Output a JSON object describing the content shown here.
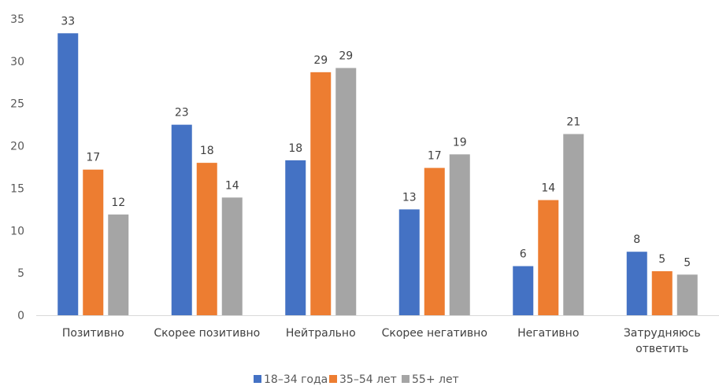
{
  "chart_data": {
    "type": "bar",
    "title": "",
    "xlabel": "",
    "ylabel": "",
    "ylim": [
      0,
      35
    ],
    "yticks": [
      0,
      5,
      10,
      15,
      20,
      25,
      30,
      35
    ],
    "grid": false,
    "legend_position": "bottom",
    "categories": [
      [
        "Позитивно"
      ],
      [
        "Скорее позитивно"
      ],
      [
        "Нейтрально"
      ],
      [
        "Скорее негативно"
      ],
      [
        "Негативно"
      ],
      [
        "Затрудняюсь",
        "ответить"
      ]
    ],
    "series": [
      {
        "name": "18–34 года",
        "color": "#4472C4",
        "values": [
          33.3,
          22.5,
          18.3,
          12.5,
          5.8,
          7.5
        ],
        "labels": [
          "33",
          "23",
          "18",
          "13",
          "6",
          "8"
        ]
      },
      {
        "name": "35–54 лет",
        "color": "#ED7D31",
        "values": [
          17.2,
          18.0,
          28.7,
          17.4,
          13.6,
          5.2
        ],
        "labels": [
          "17",
          "18",
          "29",
          "17",
          "14",
          "5"
        ]
      },
      {
        "name": "55+ лет",
        "color": "#A5A5A5",
        "values": [
          11.9,
          13.9,
          29.2,
          19.0,
          21.4,
          4.8
        ],
        "labels": [
          "12",
          "14",
          "29",
          "19",
          "21",
          "5"
        ]
      }
    ]
  }
}
